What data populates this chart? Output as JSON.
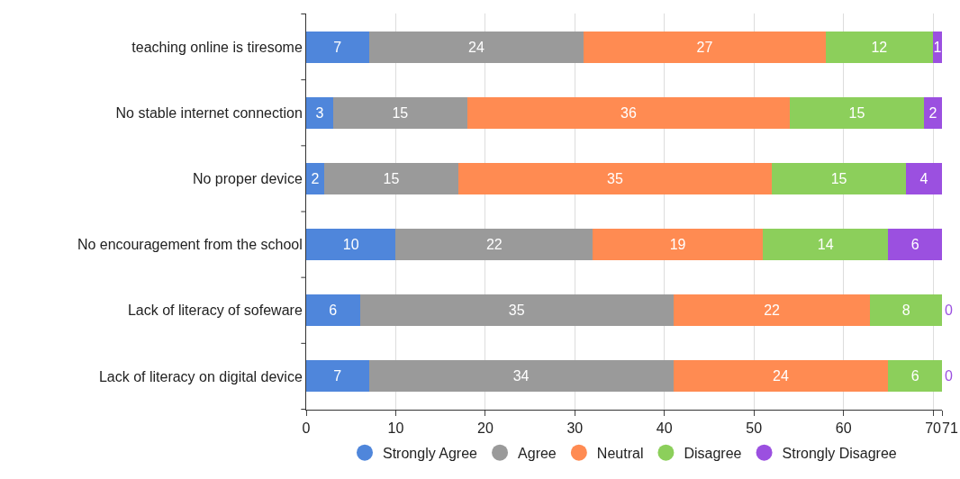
{
  "chart_data": {
    "type": "bar",
    "orientation": "horizontal",
    "stacked": true,
    "data_labels": true,
    "grid": "x",
    "legend": "bottom",
    "marker": "circle",
    "categories": [
      "teaching online is tiresome",
      "No stable internet connection",
      "No proper device",
      "No encouragement from the school",
      "Lack of literacy of sofeware",
      "Lack of literacy on digital device"
    ],
    "xlim": [
      0,
      71
    ],
    "xticks": [
      0,
      10,
      20,
      30,
      40,
      50,
      60,
      70,
      71
    ],
    "series": [
      {
        "name": "Strongly Agree",
        "color": "#4f86db",
        "values": [
          7,
          3,
          2,
          10,
          6,
          7
        ]
      },
      {
        "name": "Agree",
        "color": "#9a9a9a",
        "values": [
          24,
          15,
          15,
          22,
          35,
          34
        ]
      },
      {
        "name": "Neutral",
        "color": "#ff8b52",
        "values": [
          27,
          36,
          35,
          19,
          22,
          24
        ]
      },
      {
        "name": "Disagree",
        "color": "#8ccf5b",
        "values": [
          12,
          15,
          15,
          14,
          8,
          6
        ]
      },
      {
        "name": "Strongly Disagree",
        "color": "#9b50e0",
        "values": [
          1,
          2,
          4,
          6,
          0,
          0
        ]
      }
    ]
  }
}
